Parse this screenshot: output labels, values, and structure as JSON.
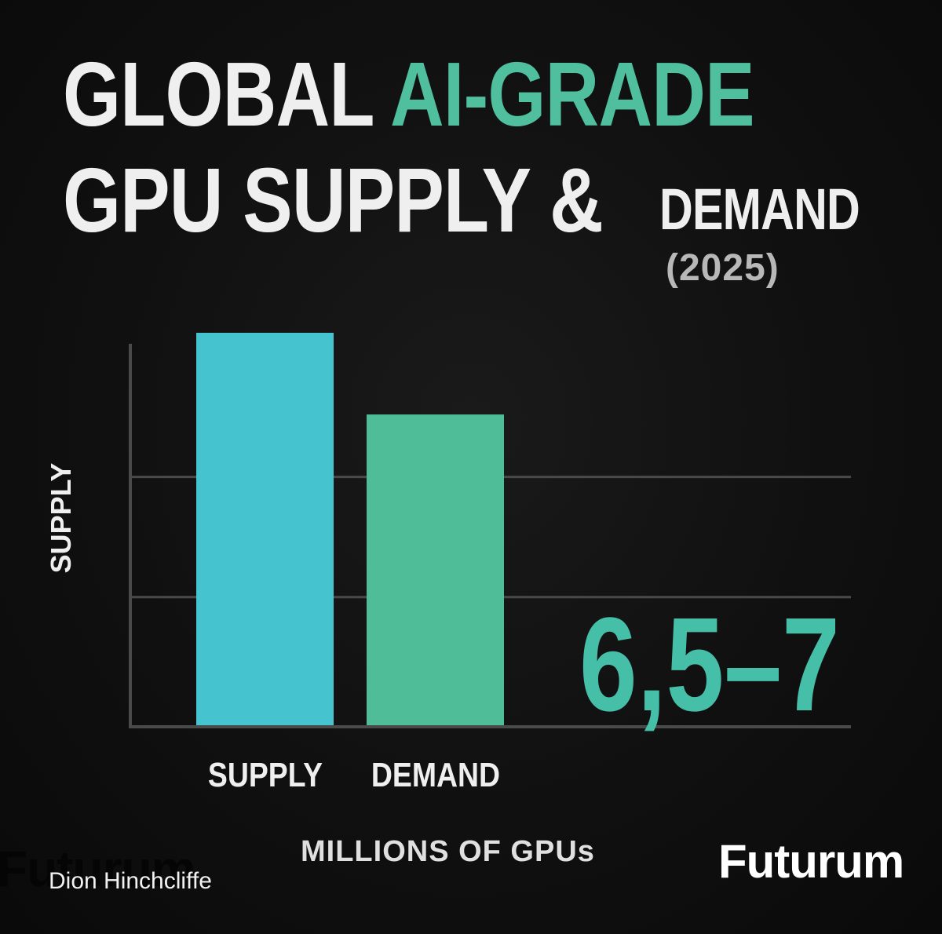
{
  "title": {
    "line1_a": "GLOBAL ",
    "line1_b": "AI-GRADE",
    "line2": "GPU SUPPLY &",
    "demand": "DEMAND",
    "year": "(2025)"
  },
  "colors": {
    "background": "#0d0d0d",
    "accent": "#4fbf9e",
    "supply_bar": "#45c4cf",
    "demand_bar": "#4fbd98",
    "value_text": "#45bfa8"
  },
  "chart_data": {
    "type": "bar",
    "categories": [
      "SUPPLY",
      "DEMAND"
    ],
    "values": [
      8.2,
      6.5
    ],
    "ylabel": "SUPPLY",
    "xlabel": "MILLIONS OF GPUs",
    "ylim": [
      0,
      8.5
    ],
    "gridlines": [
      2.7,
      5.2
    ],
    "grid": true,
    "annotation": "6,5–7"
  },
  "footer": {
    "author": "Dion Hinchcliffe",
    "brand": "Futurum",
    "brand_ghost": "Futurum"
  }
}
